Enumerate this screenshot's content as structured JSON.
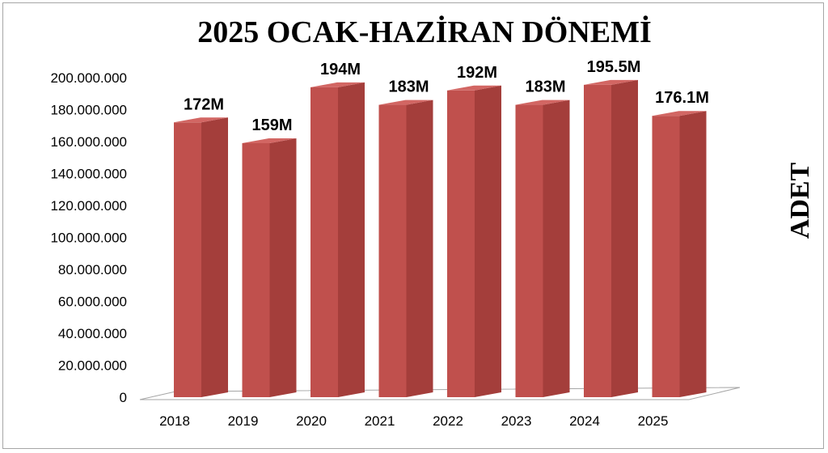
{
  "chart_data": {
    "type": "bar",
    "title": "2025 OCAK-HAZİRAN DÖNEMİ",
    "ylabel": "ADET",
    "xlabel": "",
    "categories": [
      "2018",
      "2019",
      "2020",
      "2021",
      "2022",
      "2023",
      "2024",
      "2025"
    ],
    "values": [
      172000000,
      159000000,
      194000000,
      183000000,
      192000000,
      183000000,
      195500000,
      176100000
    ],
    "data_labels": [
      "172M",
      "159M",
      "194M",
      "183M",
      "192M",
      "183M",
      "195.5M",
      "176.1M"
    ],
    "ylim": [
      0,
      200000000
    ],
    "yticks": [
      {
        "value": 0,
        "label": "0"
      },
      {
        "value": 20000000,
        "label": "20.000.000"
      },
      {
        "value": 40000000,
        "label": "40.000.000"
      },
      {
        "value": 60000000,
        "label": "60.000.000"
      },
      {
        "value": 80000000,
        "label": "80.000.000"
      },
      {
        "value": 100000000,
        "label": "100.000.000"
      },
      {
        "value": 120000000,
        "label": "120.000.000"
      },
      {
        "value": 140000000,
        "label": "140.000.000"
      },
      {
        "value": 160000000,
        "label": "160.000.000"
      },
      {
        "value": 180000000,
        "label": "180.000.000"
      },
      {
        "value": 200000000,
        "label": "200.000.000"
      }
    ],
    "style": "3d-column",
    "grid": false,
    "legend": "none",
    "colors": {
      "front": "#c0504d",
      "side": "#a43e3b",
      "top": "#d26663"
    }
  }
}
